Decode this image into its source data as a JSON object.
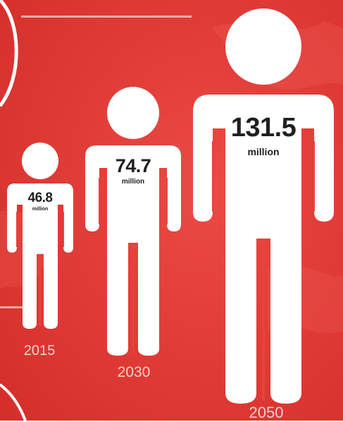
{
  "colors": {
    "background": "#e8423d",
    "background_dark": "#d8332f",
    "figure": "#ffffff",
    "value_text": "#1f1f1f",
    "year_text": "#f6d0cc"
  },
  "figures": [
    {
      "year": "2015",
      "value": "46.8",
      "unit": "million",
      "population_millions": 46.8
    },
    {
      "year": "2030",
      "value": "74.7",
      "unit": "million",
      "population_millions": 74.7
    },
    {
      "year": "2050",
      "value": "131.5",
      "unit": "million",
      "population_millions": 131.5
    }
  ]
}
